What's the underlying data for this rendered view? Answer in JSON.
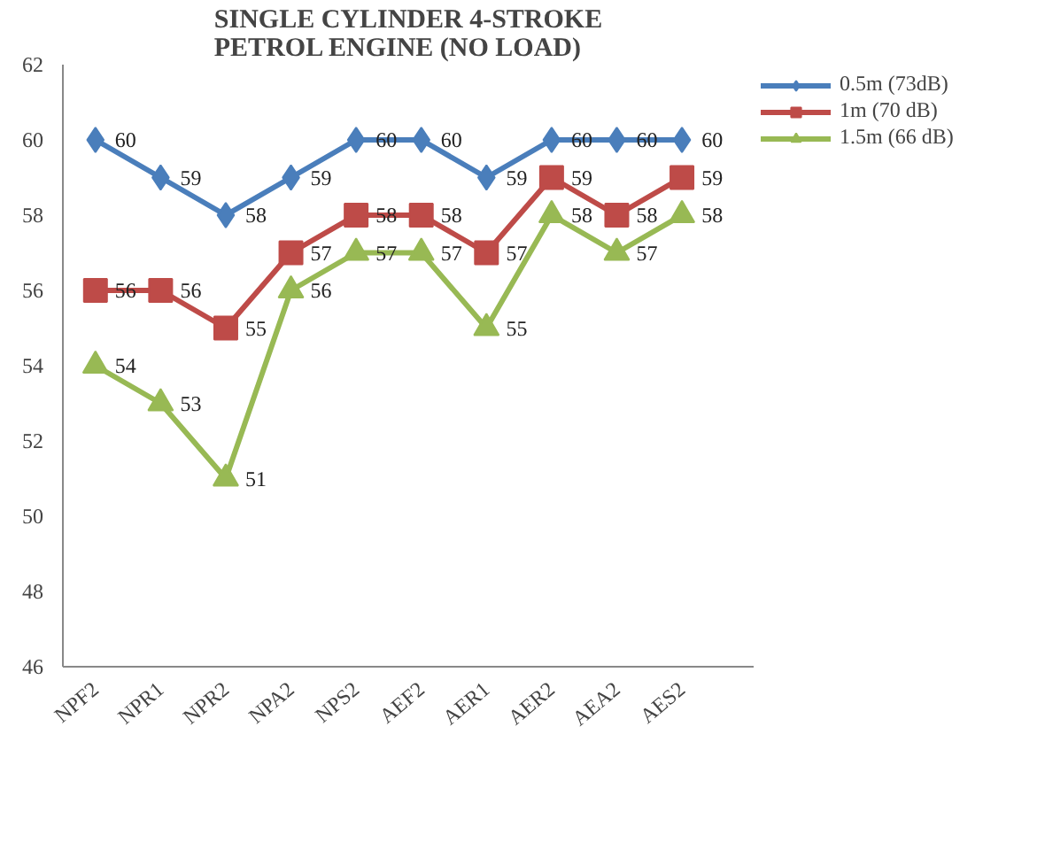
{
  "chart_data": {
    "type": "line",
    "title": "SINGLE CYLINDER 4-STROKE\nPETROL ENGINE (NO LOAD)",
    "categories": [
      "NPF2",
      "NPR1",
      "NPR2",
      "NPA2",
      "NPS2",
      "AEF2",
      "AER1",
      "AER2",
      "AEA2",
      "AES2"
    ],
    "series": [
      {
        "name": "0.5m (73dB)",
        "color": "#4a7ebb",
        "marker": "diamond",
        "values": [
          60,
          59,
          58,
          59,
          60,
          60,
          59,
          60,
          60,
          60
        ]
      },
      {
        "name": "1m (70 dB)",
        "color": "#be4b48",
        "marker": "square",
        "values": [
          56,
          56,
          55,
          57,
          58,
          58,
          57,
          59,
          58,
          59
        ]
      },
      {
        "name": "1.5m (66 dB)",
        "color": "#98b954",
        "marker": "triangle",
        "values": [
          54,
          53,
          51,
          56,
          57,
          57,
          55,
          58,
          57,
          58
        ]
      }
    ],
    "ylim": [
      46,
      62
    ],
    "yticks": [
      46,
      48,
      50,
      52,
      54,
      56,
      58,
      60,
      62
    ],
    "grid": false,
    "legend": "top right",
    "data_labels": true,
    "line_style": "solid"
  }
}
